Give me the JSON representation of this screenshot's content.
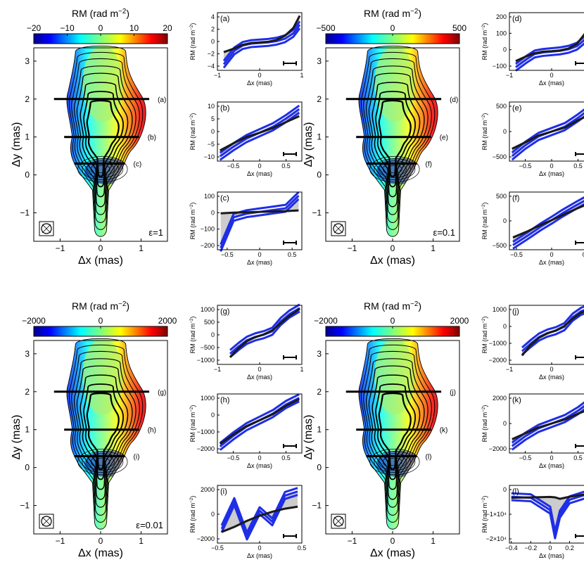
{
  "figure": {
    "map_xlabel": "Δx (mas)",
    "map_ylabel": "Δy (mas)",
    "map_xticks": [
      "−1",
      "0",
      "1"
    ],
    "map_yticks": [
      "3",
      "2",
      "1",
      "0",
      "−1"
    ],
    "colorbar_title": "RM (rad m",
    "colorbar_title_exp": "−2",
    "colorbar_title_end": ")",
    "slice_xlabel": "Δx (mas)",
    "slice_ylabel": "RM (rad m",
    "slice_ylabel_exp": "−2",
    "slice_ylabel_end": ")",
    "colors": {
      "model": "#1a1a1a",
      "sim": "#1f2ee6",
      "band": "#cccccc"
    }
  },
  "panels": [
    {
      "epsilon": "ε=1",
      "colorbar_ticks": [
        "−20",
        "−10",
        "0",
        "10",
        "20"
      ],
      "slice_markers": [
        "(a)",
        "(b)",
        "(c)"
      ],
      "slices": [
        {
          "label": "(a)",
          "xlim": [
            -1,
            1
          ],
          "xticks": [
            "−1",
            "0",
            "1"
          ],
          "ylim": [
            -4.5,
            5
          ],
          "yticks": [
            "4",
            "2",
            "0",
            "−2",
            "−4"
          ]
        },
        {
          "label": "(b)",
          "xlim": [
            -0.8,
            0.8
          ],
          "xticks": [
            "−0.5",
            "0",
            "0.5"
          ],
          "ylim": [
            -12,
            13
          ],
          "yticks": [
            "10",
            "5",
            "0",
            "−5",
            "−10"
          ]
        },
        {
          "label": "(c)",
          "xlim": [
            -0.65,
            0.65
          ],
          "xticks": [
            "−0.5",
            "0",
            "0.5"
          ],
          "ylim": [
            -210,
            110
          ],
          "yticks": [
            "100",
            "0",
            "−100",
            "−200"
          ]
        }
      ]
    },
    {
      "epsilon": "ε=0.1",
      "colorbar_ticks": [
        "−500",
        "0",
        "500"
      ],
      "slice_markers": [
        "(d)",
        "(e)",
        "(f)"
      ],
      "slices": [
        {
          "label": "(d)",
          "xlim": [
            -1,
            1
          ],
          "xticks": [
            "−1",
            "0",
            "1"
          ],
          "ylim": [
            -120,
            250
          ],
          "yticks": [
            "200",
            "100",
            "0",
            "−100"
          ]
        },
        {
          "label": "(e)",
          "xlim": [
            -0.8,
            0.8
          ],
          "xticks": [
            "−0.5",
            "0",
            "0.5"
          ],
          "ylim": [
            -600,
            600
          ],
          "yticks": [
            "500",
            "0",
            "−500"
          ]
        },
        {
          "label": "(f)",
          "xlim": [
            -0.6,
            0.6
          ],
          "xticks": [
            "−0.5",
            "0",
            "0.5"
          ],
          "ylim": [
            -650,
            620
          ],
          "yticks": [
            "500",
            "0",
            "−500"
          ]
        }
      ]
    },
    {
      "epsilon": "ε=0.01",
      "colorbar_ticks": [
        "−2000",
        "0",
        "2000"
      ],
      "slice_markers": [
        "(g)",
        "(h)",
        "(i)"
      ],
      "slices": [
        {
          "label": "(g)",
          "xlim": [
            -1,
            1
          ],
          "xticks": [
            "−1",
            "0",
            "1"
          ],
          "ylim": [
            -1600,
            1700
          ],
          "yticks": [
            "1000",
            "500",
            "0",
            "−500",
            "−1000"
          ]
        },
        {
          "label": "(h)",
          "xlim": [
            -0.8,
            0.8
          ],
          "xticks": [
            "−0.5",
            "0",
            "0.5"
          ],
          "ylim": [
            -2500,
            2000
          ],
          "yticks": [
            "1000",
            "0",
            "−1000",
            "−2000"
          ]
        },
        {
          "label": "(i)",
          "xlim": [
            -0.5,
            0.5
          ],
          "xticks": [
            "−0.5",
            "0",
            "0.5"
          ],
          "ylim": [
            -2900,
            2800
          ],
          "yticks": [
            "2000",
            "0",
            "−2000"
          ]
        }
      ]
    },
    {
      "epsilon": "",
      "colorbar_ticks": [
        "−2000",
        "0",
        "2000"
      ],
      "slice_markers": [
        "(j)",
        "(k)",
        "(l)"
      ],
      "slices": [
        {
          "label": "(j)",
          "xlim": [
            -1,
            1
          ],
          "xticks": [
            "−1",
            "0",
            "1"
          ],
          "ylim": [
            -2200,
            1800
          ],
          "yticks": [
            "1000",
            "0",
            "−1000",
            "−2000"
          ]
        },
        {
          "label": "(k)",
          "xlim": [
            -0.8,
            0.8
          ],
          "xticks": [
            "−0.5",
            "0",
            "0.5"
          ],
          "ylim": [
            -3000,
            3000
          ],
          "yticks": [
            "2000",
            "0",
            "−2000"
          ]
        },
        {
          "label": "(l)",
          "xlim": [
            -0.42,
            0.45
          ],
          "xticks": [
            "−0.4",
            "−0.2",
            "0",
            "0.2",
            "0.4"
          ],
          "ylim": [
            -24000,
            4000
          ],
          "yticks": [
            "0",
            "−1×10⁴",
            "−2×10⁴"
          ]
        }
      ]
    }
  ],
  "chart_data": [
    {
      "type": "line",
      "title": "(a)",
      "xlabel": "Δx (mas)",
      "ylabel": "RM (rad m−2)",
      "x": [
        -0.85,
        -0.6,
        -0.4,
        -0.2,
        0,
        0.2,
        0.4,
        0.6,
        0.8,
        0.95
      ],
      "series": [
        {
          "name": "model",
          "values": [
            -1.5,
            -0.9,
            -0.3,
            0,
            0.1,
            0.2,
            0.5,
            1.2,
            2.5,
            4.5
          ]
        },
        {
          "name": "simulated",
          "values": [
            -3.5,
            -1.3,
            -0.4,
            -0.1,
            0,
            0.1,
            0.3,
            0.7,
            1.6,
            3.0
          ]
        }
      ],
      "xlim": [
        -1,
        1
      ],
      "ylim": [
        -4.5,
        5
      ]
    },
    {
      "type": "line",
      "title": "(b)",
      "xlabel": "Δx (mas)",
      "ylabel": "RM (rad m−2)",
      "x": [
        -0.75,
        -0.5,
        -0.25,
        0,
        0.25,
        0.5,
        0.75
      ],
      "series": [
        {
          "name": "model",
          "values": [
            -7.5,
            -4.5,
            -1.8,
            0,
            2,
            4.5,
            7
          ]
        },
        {
          "name": "simulated",
          "values": [
            -10,
            -6,
            -2.5,
            0,
            2.5,
            6,
            10
          ]
        }
      ],
      "xlim": [
        -0.8,
        0.8
      ],
      "ylim": [
        -12,
        13
      ]
    },
    {
      "type": "line",
      "title": "(c)",
      "xlabel": "Δx (mas)",
      "ylabel": "RM (rad m−2)",
      "x": [
        -0.6,
        -0.4,
        -0.2,
        0,
        0.2,
        0.4,
        0.6
      ],
      "series": [
        {
          "name": "model",
          "values": [
            -8,
            -4,
            -2,
            0,
            2,
            4,
            8
          ]
        },
        {
          "name": "simulated",
          "values": [
            -200,
            -30,
            -10,
            0,
            10,
            20,
            90
          ]
        }
      ],
      "xlim": [
        -0.65,
        0.65
      ],
      "ylim": [
        -210,
        110
      ]
    },
    {
      "type": "line",
      "title": "(d)",
      "xlabel": "Δx (mas)",
      "ylabel": "RM (rad m−2)",
      "x": [
        -0.85,
        -0.6,
        -0.4,
        -0.2,
        0,
        0.2,
        0.4,
        0.6,
        0.8,
        0.95
      ],
      "series": [
        {
          "name": "model",
          "values": [
            -60,
            -30,
            -10,
            0,
            3,
            8,
            20,
            50,
            120,
            230
          ]
        },
        {
          "name": "simulated",
          "values": [
            -100,
            -50,
            -15,
            -5,
            0,
            5,
            15,
            35,
            80,
            180
          ]
        }
      ],
      "xlim": [
        -1,
        1
      ],
      "ylim": [
        -120,
        250
      ]
    },
    {
      "type": "line",
      "title": "(e)",
      "xlabel": "Δx (mas)",
      "ylabel": "RM (rad m−2)",
      "x": [
        -0.75,
        -0.5,
        -0.25,
        0,
        0.25,
        0.5,
        0.75
      ],
      "series": [
        {
          "name": "model",
          "values": [
            -350,
            -220,
            -80,
            0,
            80,
            230,
            360
          ]
        },
        {
          "name": "simulated",
          "values": [
            -500,
            -280,
            -100,
            0,
            100,
            280,
            480
          ]
        }
      ],
      "xlim": [
        -0.8,
        0.8
      ],
      "ylim": [
        -600,
        600
      ]
    },
    {
      "type": "line",
      "title": "(f)",
      "xlabel": "Δx (mas)",
      "ylabel": "RM (rad m−2)",
      "x": [
        -0.55,
        -0.35,
        -0.15,
        0,
        0.15,
        0.35,
        0.55
      ],
      "series": [
        {
          "name": "model",
          "values": [
            -380,
            -250,
            -100,
            0,
            110,
            250,
            380
          ]
        },
        {
          "name": "simulated",
          "values": [
            -550,
            -350,
            -140,
            0,
            150,
            330,
            500
          ]
        }
      ],
      "xlim": [
        -0.6,
        0.6
      ],
      "ylim": [
        -650,
        620
      ]
    },
    {
      "type": "line",
      "title": "(g)",
      "xlabel": "Δx (mas)",
      "ylabel": "RM (rad m−2)",
      "x": [
        -0.7,
        -0.5,
        -0.3,
        -0.1,
        0.1,
        0.3,
        0.5,
        0.7,
        0.95
      ],
      "series": [
        {
          "name": "model",
          "values": [
            -1200,
            -700,
            -300,
            -80,
            80,
            300,
            700,
            1100,
            1500
          ]
        },
        {
          "name": "simulated",
          "values": [
            -1000,
            -600,
            -250,
            -60,
            60,
            250,
            800,
            1200,
            1550
          ]
        }
      ],
      "xlim": [
        -1,
        1
      ],
      "ylim": [
        -1600,
        1700
      ]
    },
    {
      "type": "line",
      "title": "(h)",
      "xlabel": "Δx (mas)",
      "ylabel": "RM (rad m−2)",
      "x": [
        -0.75,
        -0.5,
        -0.25,
        0,
        0.25,
        0.5,
        0.75
      ],
      "series": [
        {
          "name": "model",
          "values": [
            -1800,
            -1100,
            -450,
            0,
            450,
            1100,
            1600
          ]
        },
        {
          "name": "simulated",
          "values": [
            -2000,
            -1200,
            -500,
            0,
            500,
            1200,
            1700
          ]
        }
      ],
      "xlim": [
        -0.8,
        0.8
      ],
      "ylim": [
        -2500,
        2000
      ]
    },
    {
      "type": "line",
      "title": "(i)",
      "xlabel": "Δx (mas)",
      "ylabel": "RM (rad m−2)",
      "x": [
        -0.45,
        -0.3,
        -0.15,
        0,
        0.15,
        0.3,
        0.45
      ],
      "series": [
        {
          "name": "model",
          "values": [
            -1800,
            -1300,
            -700,
            -200,
            200,
            500,
            700
          ]
        },
        {
          "name": "simulated",
          "values": [
            -1500,
            1200,
            -2200,
            300,
            -800,
            1800,
            2200
          ]
        }
      ],
      "xlim": [
        -0.5,
        0.5
      ],
      "ylim": [
        -2900,
        2800
      ]
    },
    {
      "type": "line",
      "title": "(j)",
      "xlabel": "Δx (mas)",
      "ylabel": "RM (rad m−2)",
      "x": [
        -0.7,
        -0.5,
        -0.3,
        -0.1,
        0.1,
        0.3,
        0.5,
        0.7,
        0.95
      ],
      "series": [
        {
          "name": "model",
          "values": [
            -1600,
            -900,
            -400,
            -100,
            100,
            400,
            900,
            1300,
            1600
          ]
        },
        {
          "name": "simulated",
          "values": [
            -1300,
            -800,
            -350,
            -80,
            80,
            350,
            1000,
            1400,
            1650
          ]
        }
      ],
      "xlim": [
        -1,
        1
      ],
      "ylim": [
        -2200,
        1800
      ]
    },
    {
      "type": "line",
      "title": "(k)",
      "xlabel": "Δx (mas)",
      "ylabel": "RM (rad m−2)",
      "x": [
        -0.75,
        -0.5,
        -0.25,
        0,
        0.25,
        0.5,
        0.75
      ],
      "series": [
        {
          "name": "model",
          "values": [
            -1600,
            -1000,
            -400,
            0,
            400,
            1000,
            1500
          ]
        },
        {
          "name": "simulated",
          "values": [
            -2300,
            -1300,
            -500,
            0,
            500,
            1300,
            2300
          ]
        }
      ],
      "xlim": [
        -0.8,
        0.8
      ],
      "ylim": [
        -3000,
        3000
      ]
    },
    {
      "type": "line",
      "title": "(l)",
      "xlabel": "Δx (mas)",
      "ylabel": "RM (rad m−2)",
      "x": [
        -0.4,
        -0.2,
        0,
        0.05,
        0.1,
        0.2,
        0.3,
        0.4
      ],
      "series": [
        {
          "name": "model",
          "values": [
            -2000,
            -1800,
            -1600,
            -1800,
            -2500,
            -1500,
            -800,
            0
          ]
        },
        {
          "name": "simulated",
          "values": [
            -1500,
            -2000,
            -8000,
            -20000,
            -10000,
            -3000,
            -1500,
            0
          ]
        }
      ],
      "xlim": [
        -0.42,
        0.45
      ],
      "ylim": [
        -24000,
        4000
      ]
    }
  ]
}
